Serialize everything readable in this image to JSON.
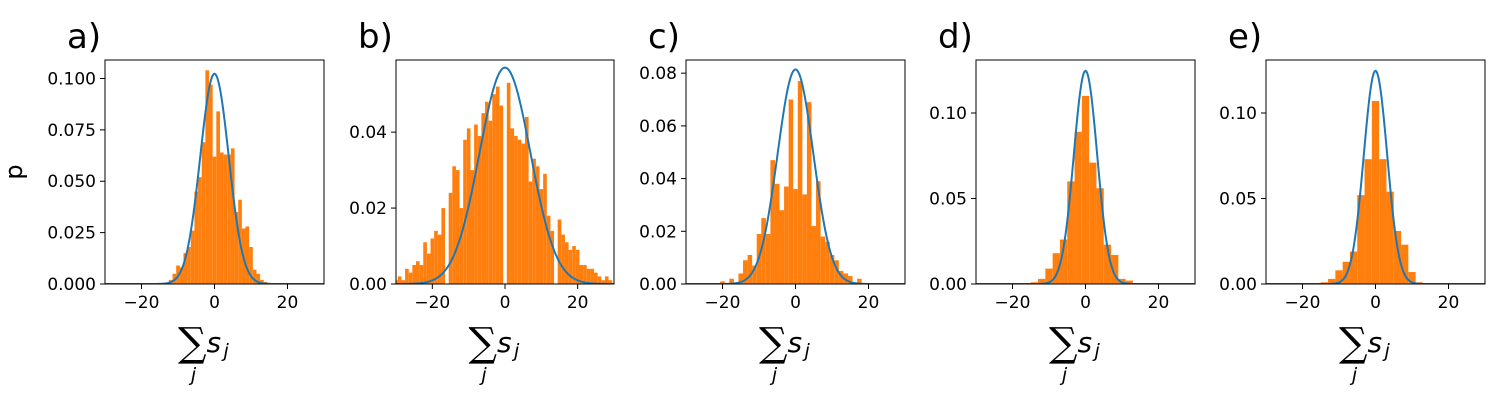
{
  "colors": {
    "histogram": "#ff7f0e",
    "curve": "#1f77b4",
    "axis": "#000000"
  },
  "chart_data": [
    {
      "type": "bar",
      "panel_label": "a)",
      "ylabel": "p",
      "xlabel": {
        "sum": "∑",
        "var": "s",
        "sub_j": "j",
        "sub_under": "j"
      },
      "xlim": [
        -30,
        30
      ],
      "ylim": [
        0,
        0.109
      ],
      "xticks": [
        -20,
        0,
        20
      ],
      "yticks": [
        0,
        0.025,
        0.05,
        0.075,
        0.1
      ],
      "ytick_labels": [
        "0.000",
        "0.025",
        "0.050",
        "0.075",
        "0.100"
      ],
      "bin_width": 1,
      "bins_x": [
        -12,
        -11,
        -10,
        -9,
        -8,
        -7,
        -6,
        -5,
        -4,
        -3,
        -2,
        -1,
        0,
        1,
        2,
        3,
        4,
        5,
        6,
        7,
        8,
        9,
        10,
        11,
        12,
        13,
        14
      ],
      "bins_y": [
        0.002,
        0.005,
        0.009,
        0.008,
        0.015,
        0.018,
        0.026,
        0.045,
        0.052,
        0.069,
        0.104,
        0.097,
        0.062,
        0.084,
        0.064,
        0.063,
        0.063,
        0.066,
        0.035,
        0.041,
        0.027,
        0.028,
        0.018,
        0.007,
        0.005,
        0.002,
        0.001
      ],
      "curve": {
        "mu": 0,
        "sigma": 3.9
      }
    },
    {
      "type": "bar",
      "panel_label": "b)",
      "ylabel": "",
      "xlabel": {
        "sum": "∑",
        "var": "s",
        "sub_j": "j",
        "sub_under": "j"
      },
      "xlim": [
        -30,
        30
      ],
      "ylim": [
        0,
        0.059
      ],
      "xticks": [
        -20,
        0,
        20
      ],
      "yticks": [
        0,
        0.02,
        0.04
      ],
      "ytick_labels": [
        "0.00",
        "0.02",
        "0.04"
      ],
      "bin_width": 1,
      "bins_x": [
        -30,
        -29,
        -28,
        -27,
        -26,
        -25,
        -24,
        -23,
        -22,
        -21,
        -20,
        -19,
        -18,
        -17,
        -16,
        -15,
        -14,
        -13,
        -12,
        -11,
        -10,
        -9,
        -8,
        -7,
        -6,
        -5,
        -4,
        -3,
        -2,
        -1,
        0,
        1,
        2,
        3,
        4,
        5,
        6,
        7,
        8,
        9,
        10,
        11,
        12,
        13,
        14,
        15,
        16,
        17,
        18,
        19,
        20,
        21,
        22,
        23,
        24,
        25,
        26,
        27,
        28,
        29
      ],
      "bins_y": [
        0.001,
        0.002,
        0.001,
        0.004,
        0.003,
        0.005,
        0.006,
        0.005,
        0.011,
        0.008,
        0.012,
        0.014,
        0.013,
        0.02,
        0.0,
        0.024,
        0.031,
        0.03,
        0.02,
        0.038,
        0.041,
        0.03,
        0.042,
        0.039,
        0.045,
        0.048,
        0.043,
        0.05,
        0.052,
        0.047,
        0.0,
        0.053,
        0.041,
        0.039,
        0.038,
        0.037,
        0.044,
        0.027,
        0.033,
        0.031,
        0.025,
        0.029,
        0.018,
        0.014,
        0.0,
        0.017,
        0.013,
        0.011,
        0.009,
        0.01,
        0.009,
        0.005,
        0.005,
        0.004,
        0.004,
        0.003,
        0.002,
        0.001,
        0.002,
        0.001
      ],
      "curve": {
        "mu": 0,
        "sigma": 7.0
      }
    },
    {
      "type": "bar",
      "panel_label": "c)",
      "ylabel": "",
      "xlabel": {
        "sum": "∑",
        "var": "s",
        "sub_j": "j",
        "sub_under": "j"
      },
      "xlim": [
        -30,
        30
      ],
      "ylim": [
        0,
        0.085
      ],
      "xticks": [
        -20,
        0,
        20
      ],
      "yticks": [
        0,
        0.02,
        0.04,
        0.06,
        0.08
      ],
      "ytick_labels": [
        "0.00",
        "0.02",
        "0.04",
        "0.06",
        "0.08"
      ],
      "bin_width": 1.25,
      "bins_x": [
        -20,
        -18.75,
        -17.5,
        -16.25,
        -15,
        -13.75,
        -12.5,
        -11.25,
        -10,
        -8.75,
        -7.5,
        -6.25,
        -5,
        -3.75,
        -2.5,
        -1.25,
        0,
        1.25,
        2.5,
        3.75,
        5,
        6.25,
        7.5,
        8.75,
        10,
        11.25,
        12.5,
        13.75,
        15,
        16.25,
        17.5,
        18.75,
        20
      ],
      "bins_y": [
        0.001,
        0.0,
        0.002,
        0.0,
        0.004,
        0.009,
        0.011,
        0.007,
        0.019,
        0.025,
        0.019,
        0.047,
        0.038,
        0.028,
        0.037,
        0.07,
        0.036,
        0.077,
        0.034,
        0.069,
        0.022,
        0.039,
        0.018,
        0.016,
        0.011,
        0.009,
        0.005,
        0.004,
        0.003,
        0.0,
        0.002,
        0.0,
        0.0
      ],
      "curve": {
        "mu": 0,
        "sigma": 4.9
      }
    },
    {
      "type": "bar",
      "panel_label": "d)",
      "ylabel": "",
      "xlabel": {
        "sum": "∑",
        "var": "s",
        "sub_j": "j",
        "sub_under": "j"
      },
      "xlim": [
        -30,
        30
      ],
      "ylim": [
        0,
        0.131
      ],
      "xticks": [
        -20,
        0,
        20
      ],
      "yticks": [
        0,
        0.05,
        0.1
      ],
      "ytick_labels": [
        "0.00",
        "0.05",
        "0.10"
      ],
      "bin_width": 2,
      "bins_x": [
        -14,
        -12,
        -10,
        -8,
        -6,
        -4,
        -2,
        0,
        2,
        4,
        6,
        8,
        10,
        12
      ],
      "bins_y": [
        0.001,
        0.003,
        0.009,
        0.018,
        0.026,
        0.06,
        0.089,
        0.11,
        0.071,
        0.056,
        0.023,
        0.017,
        0.003,
        0.002
      ],
      "curve": {
        "mu": 0,
        "sigma": 3.2
      }
    },
    {
      "type": "bar",
      "panel_label": "e)",
      "ylabel": "",
      "xlabel": {
        "sum": "∑",
        "var": "s",
        "sub_j": "j",
        "sub_under": "j"
      },
      "xlim": [
        -30,
        30
      ],
      "ylim": [
        0,
        0.131
      ],
      "xticks": [
        -20,
        0,
        20
      ],
      "yticks": [
        0,
        0.05,
        0.1
      ],
      "ytick_labels": [
        "0.00",
        "0.05",
        "0.10"
      ],
      "bin_width": 2,
      "bins_x": [
        -14,
        -12,
        -10,
        -8,
        -6,
        -4,
        -2,
        0,
        2,
        4,
        6,
        8,
        10,
        12
      ],
      "bins_y": [
        0.001,
        0.003,
        0.008,
        0.013,
        0.019,
        0.052,
        0.073,
        0.107,
        0.073,
        0.054,
        0.031,
        0.023,
        0.007,
        0.001
      ],
      "curve": {
        "mu": 0,
        "sigma": 3.2
      }
    }
  ]
}
